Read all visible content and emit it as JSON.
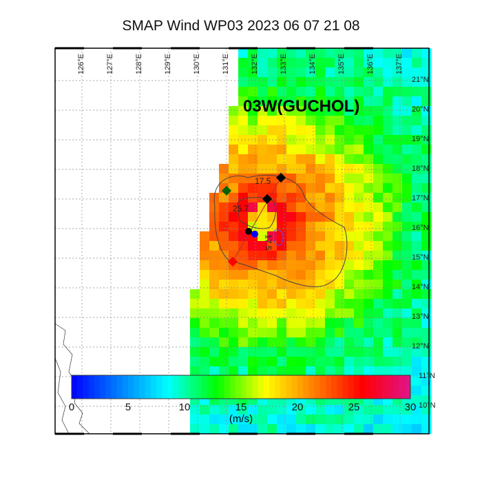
{
  "title": "SMAP Wind  WP03  2023 06 07 21 08",
  "storm_label": "03W(GUCHOL)",
  "longitude_labels": [
    "126°E",
    "127°E",
    "128°E",
    "129°E",
    "130°E",
    "131°E",
    "132°E",
    "133°E",
    "134°E",
    "135°E",
    "136°E",
    "137°E"
  ],
  "latitude_labels": [
    "21°N",
    "20°N",
    "19°N",
    "18°N",
    "17°N",
    "16°N",
    "15°N",
    "14°N",
    "13°N",
    "12°N",
    "11°N",
    "10°N"
  ],
  "contour_labels": [
    "17.5",
    "25.7",
    "17.5"
  ],
  "colorbar": {
    "ticks": [
      "0",
      "5",
      "10",
      "15",
      "20",
      "25",
      "30"
    ],
    "units": "(m/s)",
    "range": [
      0,
      30
    ],
    "colors": [
      "#0000ff",
      "#0080ff",
      "#00ffff",
      "#00ff00",
      "#ffff00",
      "#ff8000",
      "#ff0000",
      "#e0148c"
    ]
  },
  "markers": {
    "center": "#000000",
    "ne_radius": "#000000",
    "nw_radius": "#006400",
    "sw_radius": "#ff0000",
    "max_wind": "#0000ff"
  }
}
